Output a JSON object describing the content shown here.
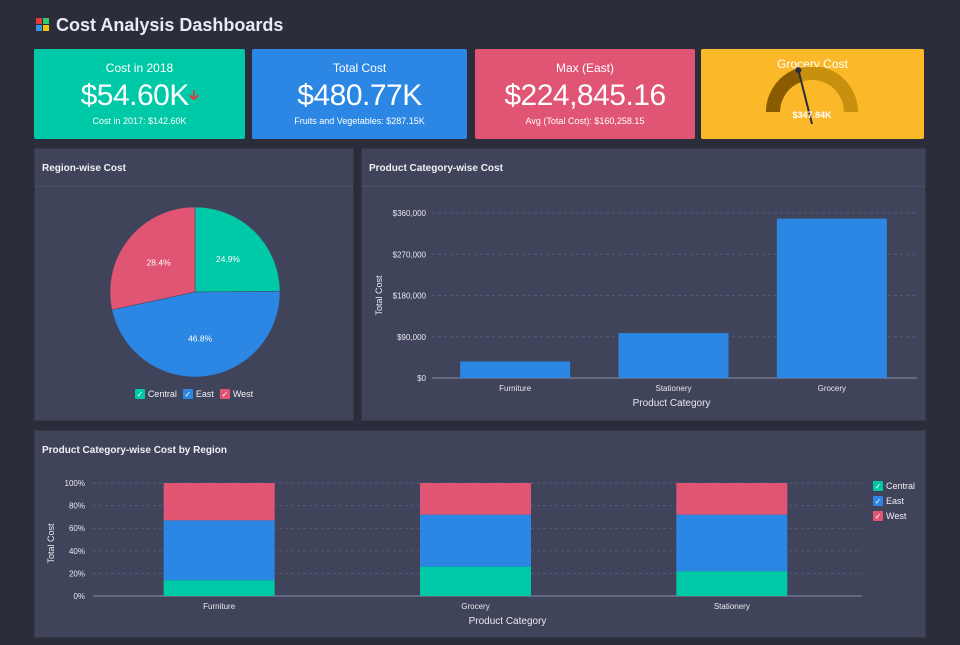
{
  "header": {
    "title": "Cost Analysis Dashboards",
    "logo_colors": [
      "#e0383d",
      "#2ecc71",
      "#3498db",
      "#f1c40f"
    ]
  },
  "kpis": [
    {
      "title": "Cost in 2018",
      "value": "$54.60K",
      "sub": "Cost in 2017: $142.60K",
      "color": "#00c9a7",
      "trend_icon": "arrow-down-icon"
    },
    {
      "title": "Total Cost",
      "value": "$480.77K",
      "sub": "Fruits and Vegetables: $287.15K",
      "color": "#2b87e3"
    },
    {
      "title": "Max (East)",
      "value": "$224,845.16",
      "sub": "Avg (Total Cost): $160,258.15",
      "color": "#e05474"
    }
  ],
  "gauge": {
    "title": "Grocery Cost",
    "value_label": "$347.84K",
    "fraction": 0.4,
    "color": "#fbb829"
  },
  "colors": {
    "Central": "#00c9a7",
    "East": "#2b87e3",
    "West": "#e05474"
  },
  "chart_data": [
    {
      "type": "pie",
      "title": "Region-wise Cost",
      "slices": [
        {
          "label": "Central",
          "value": 24.9,
          "display": "24.9%"
        },
        {
          "label": "East",
          "value": 46.8,
          "display": "46.8%"
        },
        {
          "label": "West",
          "value": 28.4,
          "display": "28.4%"
        }
      ],
      "legend": [
        "Central",
        "East",
        "West"
      ],
      "legend_placement": "bottom"
    },
    {
      "type": "bar",
      "title": "Product Category-wise Cost",
      "categories": [
        "Furniture",
        "Stationery",
        "Grocery"
      ],
      "values": [
        36000,
        98000,
        347840
      ],
      "xlabel": "Product Category",
      "ylabel": "Total Cost",
      "ylim": [
        0,
        360000
      ],
      "yticks": [
        "$0",
        "$90,000",
        "$180,000",
        "$270,000",
        "$360,000"
      ],
      "grid": true
    },
    {
      "type": "bar",
      "stacked": true,
      "title": "Product Category-wise Cost by Region",
      "categories": [
        "Furniture",
        "Grocery",
        "Stationery"
      ],
      "series": [
        {
          "name": "Central",
          "values": [
            14,
            26,
            22
          ]
        },
        {
          "name": "East",
          "values": [
            53,
            46,
            50
          ]
        },
        {
          "name": "West",
          "values": [
            33,
            28,
            28
          ]
        }
      ],
      "xlabel": "Product Category",
      "ylabel": "Total Cost",
      "ylim": [
        0,
        100
      ],
      "yticks": [
        "0%",
        "20%",
        "40%",
        "60%",
        "80%",
        "100%"
      ],
      "legend": [
        "Central",
        "East",
        "West"
      ],
      "legend_placement": "right",
      "grid": true
    }
  ]
}
